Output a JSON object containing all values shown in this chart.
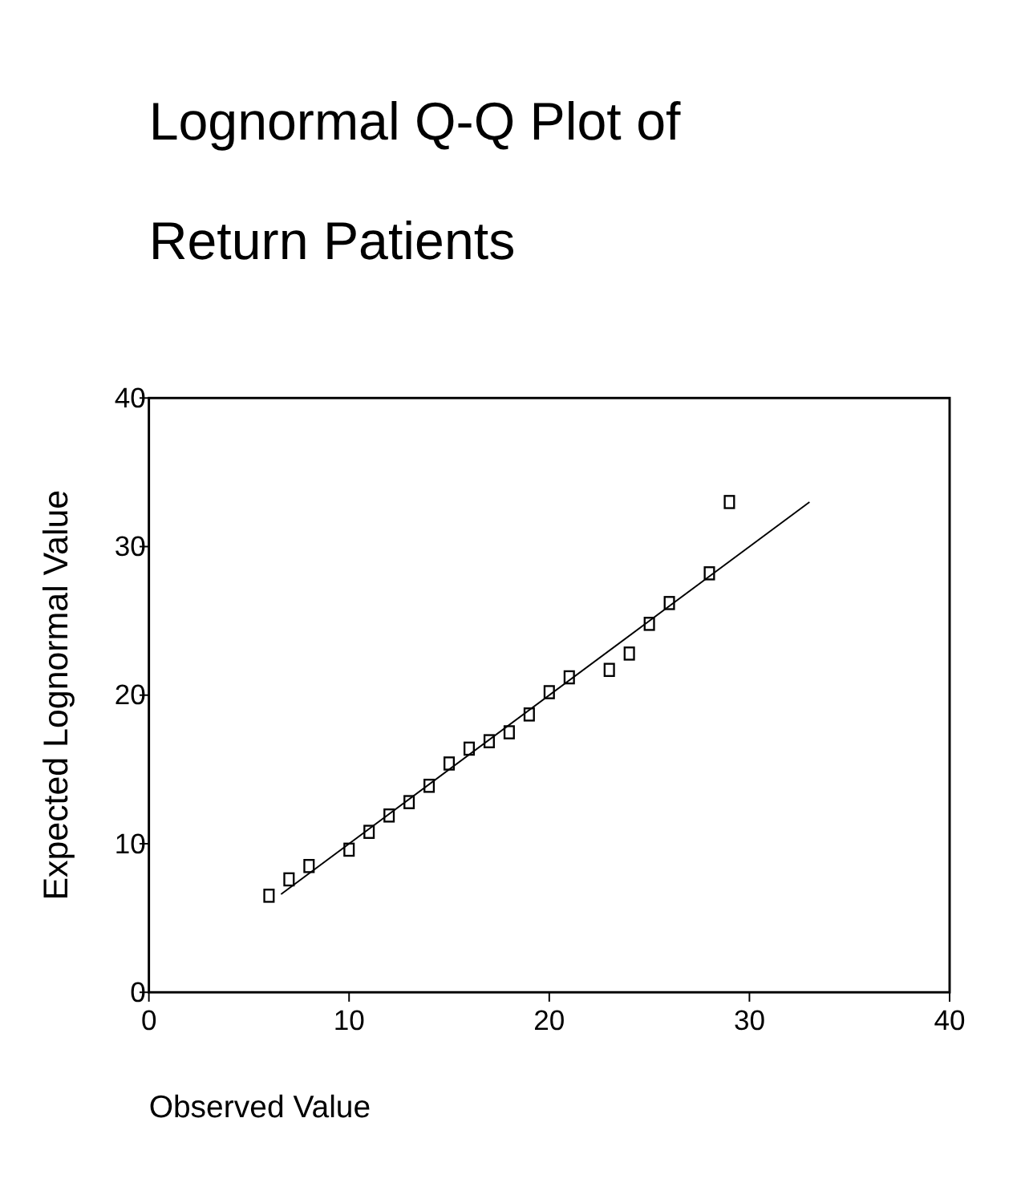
{
  "chart_data": {
    "type": "scatter",
    "title": "Lognormal Q-Q Plot of Return Patients",
    "xlabel": "Observed Value",
    "ylabel": "Expected Lognormal Value",
    "xlim": [
      0,
      40
    ],
    "ylim": [
      0,
      40
    ],
    "xticks": [
      0,
      10,
      20,
      30,
      40
    ],
    "yticks": [
      0,
      10,
      20,
      30,
      40
    ],
    "grid": false,
    "marker": "square",
    "x": [
      6,
      7,
      8,
      10,
      11,
      12,
      13,
      14,
      15,
      16,
      17,
      18,
      19,
      20,
      21,
      23,
      24,
      25,
      26,
      28,
      29
    ],
    "series": [
      {
        "color": "#000000",
        "values": [
          6.5,
          7.6,
          8.5,
          9.6,
          10.8,
          11.9,
          12.8,
          13.9,
          15.4,
          16.4,
          16.9,
          17.5,
          18.7,
          20.2,
          21.2,
          21.7,
          22.8,
          24.8,
          26.2,
          28.2,
          33.0
        ]
      },
      {
        "type": "line",
        "color": "#000000",
        "x": [
          6.6,
          33
        ],
        "values": [
          6.6,
          33
        ],
        "marker": "none",
        "line_style": "solid"
      }
    ]
  }
}
